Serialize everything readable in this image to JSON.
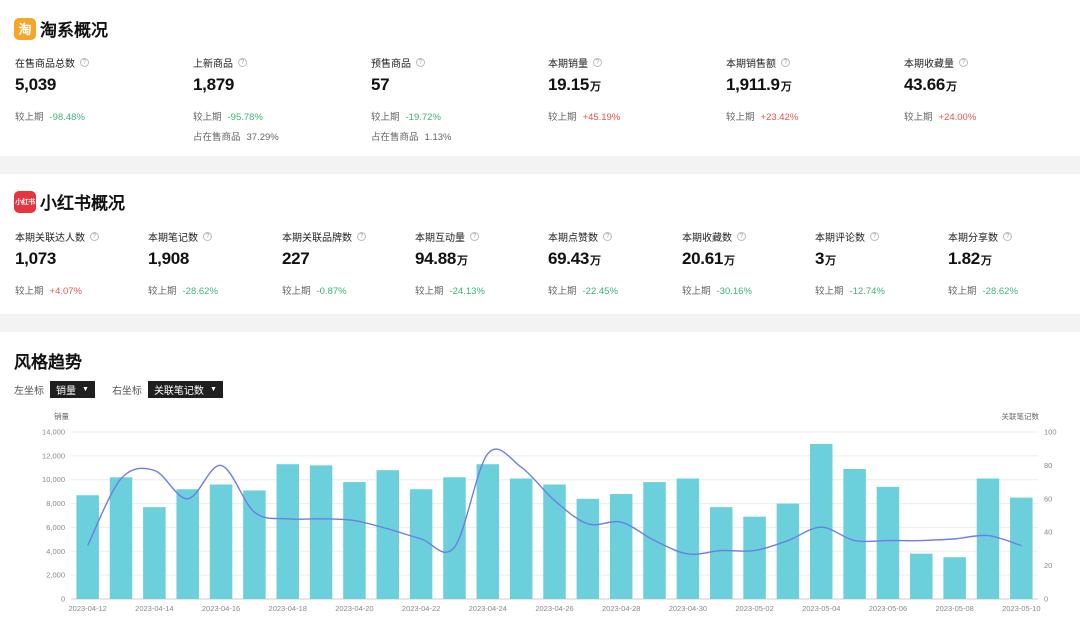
{
  "colors": {
    "bar": "#6ccfdc",
    "line": "#6b7ee8",
    "neg": "#3bb377",
    "pos": "#e8534a"
  },
  "taobao": {
    "logo": "淘",
    "title": "淘系概况",
    "metrics": [
      {
        "label": "在售商品总数",
        "value": "5,039",
        "unit": "",
        "cmp_label": "较上期",
        "cmp_value": "-98.48%"
      },
      {
        "label": "上新商品",
        "value": "1,879",
        "unit": "",
        "cmp_label": "较上期",
        "cmp_value": "-95.78%",
        "ratio_label": "占在售商品",
        "ratio_value": "37.29%"
      },
      {
        "label": "预售商品",
        "value": "57",
        "unit": "",
        "cmp_label": "较上期",
        "cmp_value": "-19.72%",
        "ratio_label": "占在售商品",
        "ratio_value": "1.13%"
      },
      {
        "label": "本期销量",
        "value": "19.15",
        "unit": "万",
        "cmp_label": "较上期",
        "cmp_value": "+45.19%"
      },
      {
        "label": "本期销售额",
        "value": "1,911.9",
        "unit": "万",
        "cmp_label": "较上期",
        "cmp_value": "+23.42%"
      },
      {
        "label": "本期收藏量",
        "value": "43.66",
        "unit": "万",
        "cmp_label": "较上期",
        "cmp_value": "+24.00%"
      }
    ]
  },
  "xhs": {
    "logo": "小红书",
    "title": "小红书概况",
    "metrics": [
      {
        "label": "本期关联达人数",
        "value": "1,073",
        "unit": "",
        "cmp_label": "较上期",
        "cmp_value": "+4.07%"
      },
      {
        "label": "本期笔记数",
        "value": "1,908",
        "unit": "",
        "cmp_label": "较上期",
        "cmp_value": "-28.62%"
      },
      {
        "label": "本期关联品牌数",
        "value": "227",
        "unit": "",
        "cmp_label": "较上期",
        "cmp_value": "-0.87%"
      },
      {
        "label": "本期互动量",
        "value": "94.88",
        "unit": "万",
        "cmp_label": "较上期",
        "cmp_value": "-24.13%"
      },
      {
        "label": "本期点赞数",
        "value": "69.43",
        "unit": "万",
        "cmp_label": "较上期",
        "cmp_value": "-22.45%"
      },
      {
        "label": "本期收藏数",
        "value": "20.61",
        "unit": "万",
        "cmp_label": "较上期",
        "cmp_value": "-30.16%"
      },
      {
        "label": "本期评论数",
        "value": "3",
        "unit": "万",
        "cmp_label": "较上期",
        "cmp_value": "-12.74%"
      },
      {
        "label": "本期分享数",
        "value": "1.82",
        "unit": "万",
        "cmp_label": "较上期",
        "cmp_value": "-28.62%"
      }
    ]
  },
  "trend": {
    "title": "风格趋势",
    "left_axis_label": "左坐标",
    "left_axis_value": "销量",
    "right_axis_label": "右坐标",
    "right_axis_value": "关联笔记数"
  },
  "chart_data": {
    "type": "bar",
    "title": "风格趋势",
    "ylabel": "销量",
    "y2label": "关联笔记数",
    "ylim": [
      0,
      14000
    ],
    "y2lim": [
      0,
      100
    ],
    "yticks": [
      "0",
      "2,000",
      "4,000",
      "6,000",
      "8,000",
      "10,000",
      "12,000",
      "14,000"
    ],
    "y2ticks": [
      "0",
      "20",
      "40",
      "60",
      "80",
      "100"
    ],
    "x_tick_labels": [
      "2023-04-12",
      "2023-04-14",
      "2023-04-16",
      "2023-04-18",
      "2023-04-20",
      "2023-04-22",
      "2023-04-24",
      "2023-04-26",
      "2023-04-28",
      "2023-04-30",
      "2023-05-02",
      "2023-05-04",
      "2023-05-06",
      "2023-05-08",
      "2023-05-10"
    ],
    "categories": [
      "2023-04-12",
      "2023-04-13",
      "2023-04-14",
      "2023-04-15",
      "2023-04-16",
      "2023-04-17",
      "2023-04-18",
      "2023-04-19",
      "2023-04-20",
      "2023-04-21",
      "2023-04-22",
      "2023-04-23",
      "2023-04-24",
      "2023-04-25",
      "2023-04-26",
      "2023-04-27",
      "2023-04-28",
      "2023-04-29",
      "2023-04-30",
      "2023-05-01",
      "2023-05-02",
      "2023-05-03",
      "2023-05-04",
      "2023-05-05",
      "2023-05-06",
      "2023-05-07",
      "2023-05-08",
      "2023-05-09",
      "2023-05-10"
    ],
    "series": [
      {
        "name": "销量",
        "type": "bar",
        "axis": "left",
        "values": [
          8700,
          10200,
          7700,
          9200,
          9600,
          9100,
          11300,
          11200,
          9800,
          10800,
          9200,
          10200,
          11300,
          10100,
          9600,
          8400,
          8800,
          9800,
          10100,
          7700,
          6900,
          8000,
          13000,
          10900,
          9400,
          3800,
          3500,
          10100,
          8500
        ]
      },
      {
        "name": "关联笔记数",
        "type": "line",
        "axis": "right",
        "values": [
          32,
          72,
          77,
          60,
          80,
          52,
          48,
          48,
          47,
          42,
          36,
          31,
          87,
          79,
          59,
          45,
          46,
          35,
          27,
          29,
          29,
          35,
          43,
          35,
          35,
          35,
          36,
          38,
          32
        ]
      }
    ]
  }
}
